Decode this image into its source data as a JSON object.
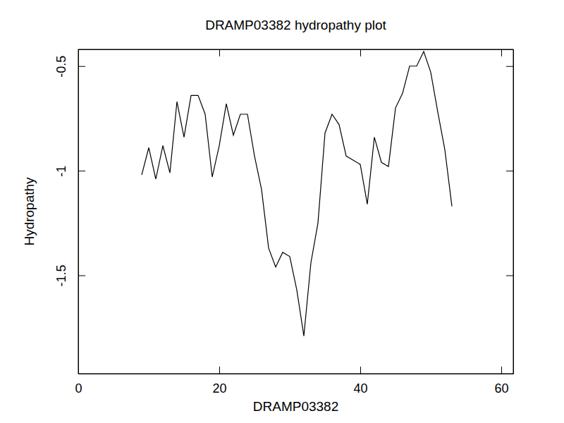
{
  "chart_data": {
    "type": "line",
    "title": "DRAMP03382 hydropathy plot",
    "x_label": "DRAMP03382",
    "y_label": "Hydropathy",
    "x": [
      9,
      10,
      11,
      12,
      13,
      14,
      15,
      16,
      17,
      18,
      19,
      20,
      21,
      22,
      23,
      24,
      25,
      26,
      27,
      28,
      29,
      30,
      31,
      32,
      33,
      34,
      35,
      36,
      37,
      38,
      39,
      40,
      41,
      42,
      43,
      44,
      45,
      46,
      47,
      48,
      49,
      50,
      51,
      52,
      53
    ],
    "values": [
      -1.02,
      -0.89,
      -1.04,
      -0.88,
      -1.01,
      -0.67,
      -0.84,
      -0.64,
      -0.64,
      -0.73,
      -1.03,
      -0.88,
      -0.68,
      -0.83,
      -0.73,
      -0.73,
      -0.93,
      -1.09,
      -1.37,
      -1.46,
      -1.39,
      -1.41,
      -1.57,
      -1.79,
      -1.44,
      -1.25,
      -0.82,
      -0.73,
      -0.78,
      -0.93,
      -0.95,
      -0.97,
      -1.16,
      -0.84,
      -0.96,
      -0.98,
      -0.7,
      -0.63,
      -0.5,
      -0.5,
      -0.43,
      -0.53,
      -0.72,
      -0.9,
      -1.17
    ],
    "color": "#000000",
    "xlim": [
      0,
      61.7
    ],
    "xticks": [
      0,
      20,
      40,
      60
    ],
    "ylim": [
      -1.97,
      -0.42
    ],
    "yticks": [
      -1.5,
      -1.0,
      -0.5
    ],
    "grid": false
  }
}
